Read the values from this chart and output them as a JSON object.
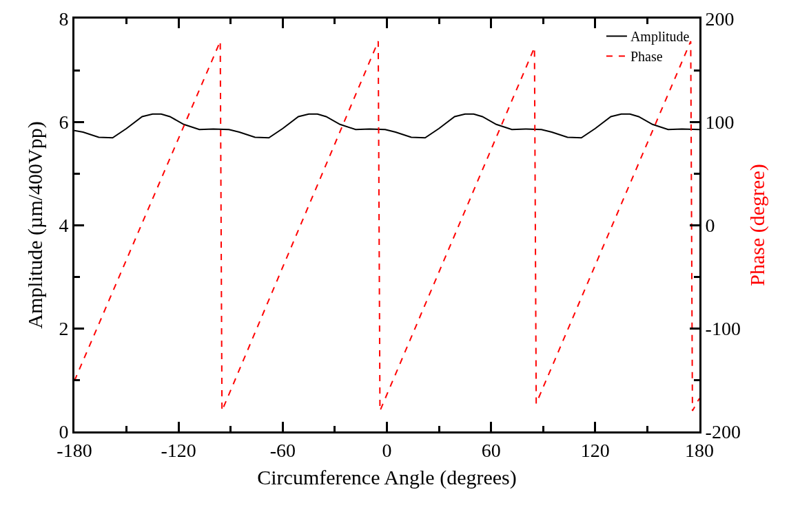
{
  "chart_data": {
    "type": "line",
    "xlabel": "Circumference Angle (degrees)",
    "ylabel": "Amplitude (µm/400Vpp)",
    "y2label": "Phase (degree)",
    "xlim": [
      -180,
      180
    ],
    "xticks": [
      -180,
      -120,
      -60,
      0,
      60,
      120,
      180
    ],
    "ylim": [
      0,
      8
    ],
    "yticks": [
      0,
      2,
      4,
      6,
      8
    ],
    "y2lim": [
      -200,
      200
    ],
    "y2ticks": [
      -200,
      -100,
      0,
      100,
      200
    ],
    "legend": "top right",
    "marker": "none",
    "series": [
      {
        "name": "Amplitude",
        "color": "#000000",
        "line_style": "solid",
        "x": [
          -180,
          -175,
          -166,
          -158,
          -150,
          -141,
          -135,
          -130,
          -125,
          -117,
          -108,
          -100,
          -91,
          -85,
          -76,
          -68,
          -60,
          -51,
          -45,
          -40,
          -35,
          -27,
          -18,
          -10,
          -1,
          5,
          14,
          22,
          30,
          39,
          45,
          50,
          55,
          63,
          72,
          80,
          89,
          95,
          104,
          112,
          120,
          129,
          135,
          140,
          145,
          153,
          162,
          170,
          180
        ],
        "values": [
          5.83,
          5.8,
          5.7,
          5.69,
          5.87,
          6.1,
          6.15,
          6.15,
          6.1,
          5.95,
          5.85,
          5.86,
          5.85,
          5.8,
          5.7,
          5.69,
          5.87,
          6.1,
          6.15,
          6.15,
          6.1,
          5.95,
          5.85,
          5.86,
          5.85,
          5.8,
          5.7,
          5.69,
          5.87,
          6.1,
          6.15,
          6.15,
          6.1,
          5.95,
          5.85,
          5.86,
          5.85,
          5.8,
          5.7,
          5.69,
          5.87,
          6.1,
          6.15,
          6.15,
          6.1,
          5.95,
          5.85,
          5.86,
          5.85
        ]
      },
      {
        "name": "Phase",
        "color": "#ff0000",
        "line_style": "dashed",
        "axis": "y2",
        "x": [
          -180,
          -96,
          -95,
          -5,
          -4,
          85,
          86,
          175,
          176,
          180
        ],
        "values": [
          -151,
          178,
          -180,
          178,
          -180,
          172,
          -173,
          178,
          -180,
          -168
        ]
      }
    ]
  }
}
